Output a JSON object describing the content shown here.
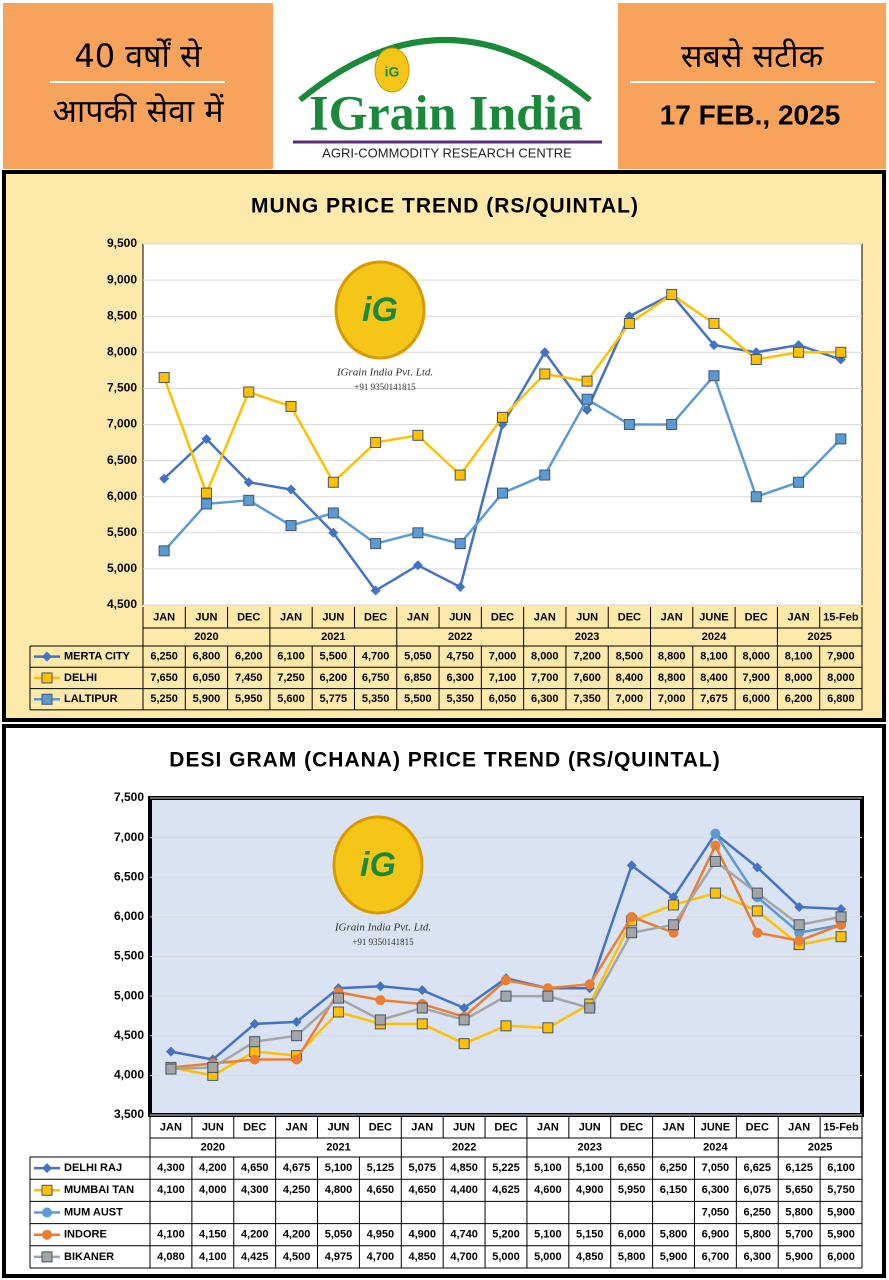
{
  "header": {
    "left_line1": "40 वर्षों से",
    "left_line2": "आपकी सेवा में",
    "logo_mark": "iG",
    "logo_title": "IGrain India",
    "logo_subtitle": "AGRI-COMMODITY RESEARCH CENTRE",
    "right_line1": "सबसे सटीक",
    "date": "17 FEB., 2025"
  },
  "chart_data": [
    {
      "type": "line",
      "title": "MUNG  PRICE TREND (RS/QUINTAL)",
      "watermark": {
        "mark": "iG",
        "name": "IGrain India Pvt. Ltd.",
        "phone": "+91 9350141815"
      },
      "categories": [
        "JAN",
        "JUN",
        "DEC",
        "JAN",
        "JUN",
        "DEC",
        "JAN",
        "JUN",
        "DEC",
        "JAN",
        "JUN",
        "DEC",
        "JAN",
        "JUNE",
        "DEC",
        "JAN",
        "15-Feb"
      ],
      "years": [
        "2020",
        "2021",
        "2022",
        "2023",
        "2024",
        "2025"
      ],
      "ylim": [
        4500,
        9500
      ],
      "yticks": [
        {
          "value": 4500,
          "label": "4,500"
        },
        {
          "value": 5000,
          "label": "5,000"
        },
        {
          "value": 5500,
          "label": "5,500"
        },
        {
          "value": 6000,
          "label": "6,000"
        },
        {
          "value": 6500,
          "label": "6,500"
        },
        {
          "value": 7000,
          "label": "7,000"
        },
        {
          "value": 7500,
          "label": "7,500"
        },
        {
          "value": 8000,
          "label": "8,000"
        },
        {
          "value": 8500,
          "label": "8,500"
        },
        {
          "value": 9000,
          "label": "9,000"
        },
        {
          "value": 9500,
          "label": "9,500"
        }
      ],
      "grid": true,
      "series": [
        {
          "name": "MERTA CITY",
          "color": "#4472c4",
          "marker": "diamond",
          "values": [
            6250,
            6800,
            6200,
            6100,
            5500,
            4700,
            5050,
            4750,
            7000,
            8000,
            7200,
            8500,
            8800,
            8100,
            8000,
            8100,
            7900
          ],
          "value_labels": [
            "6,250",
            "6,800",
            "6,200",
            "6,100",
            "5,500",
            "4,700",
            "5,050",
            "4,750",
            "7,000",
            "8,000",
            "7,200",
            "8,500",
            "8,800",
            "8,100",
            "8,000",
            "8,100",
            "7,900"
          ]
        },
        {
          "name": "DELHI",
          "color": "#ffc000",
          "marker": "square",
          "values": [
            7650,
            6050,
            7450,
            7250,
            6200,
            6750,
            6850,
            6300,
            7100,
            7700,
            7600,
            8400,
            8800,
            8400,
            7900,
            8000,
            8000
          ],
          "value_labels": [
            "7,650",
            "6,050",
            "7,450",
            "7,250",
            "6,200",
            "6,750",
            "6,850",
            "6,300",
            "7,100",
            "7,700",
            "7,600",
            "8,400",
            "8,800",
            "8,400",
            "7,900",
            "8,000",
            "8,000"
          ]
        },
        {
          "name": "LALTIPUR",
          "color": "#5b9bd5",
          "marker": "square",
          "values": [
            5250,
            5900,
            5950,
            5600,
            5775,
            5350,
            5500,
            5350,
            6050,
            6300,
            7350,
            7000,
            7000,
            7675,
            6000,
            6200,
            6800
          ],
          "value_labels": [
            "5,250",
            "5,900",
            "5,950",
            "5,600",
            "5,775",
            "5,350",
            "5,500",
            "5,350",
            "6,050",
            "6,300",
            "7,350",
            "7,000",
            "7,000",
            "7,675",
            "6,000",
            "6,200",
            "6,800"
          ]
        }
      ]
    },
    {
      "type": "line",
      "title": "DESI GRAM (CHANA)  PRICE TREND (RS/QUINTAL)",
      "watermark": {
        "mark": "iG",
        "name": "IGrain India Pvt. Ltd.",
        "phone": "+91 9350141815"
      },
      "categories": [
        "JAN",
        "JUN",
        "DEC",
        "JAN",
        "JUN",
        "DEC",
        "JAN",
        "JUN",
        "DEC",
        "JAN",
        "JUN",
        "DEC",
        "JAN",
        "JUNE",
        "DEC",
        "JAN",
        "15-Feb"
      ],
      "years": [
        "2020",
        "2021",
        "2022",
        "2023",
        "2024",
        "2025"
      ],
      "ylim": [
        3500,
        7500
      ],
      "yticks": [
        {
          "value": 3500,
          "label": "3,500"
        },
        {
          "value": 4000,
          "label": "4,000"
        },
        {
          "value": 4500,
          "label": "4,500"
        },
        {
          "value": 5000,
          "label": "5,000"
        },
        {
          "value": 5500,
          "label": "5,500"
        },
        {
          "value": 6000,
          "label": "6,000"
        },
        {
          "value": 6500,
          "label": "6,500"
        },
        {
          "value": 7000,
          "label": "7,000"
        },
        {
          "value": 7500,
          "label": "7,500"
        }
      ],
      "grid": true,
      "series": [
        {
          "name": "DELHI RAJ",
          "color": "#4472c4",
          "marker": "diamond",
          "values": [
            4300,
            4200,
            4650,
            4675,
            5100,
            5125,
            5075,
            4850,
            5225,
            5100,
            5100,
            6650,
            6250,
            7050,
            6625,
            6125,
            6100
          ],
          "value_labels": [
            "4,300",
            "4,200",
            "4,650",
            "4,675",
            "5,100",
            "5,125",
            "5,075",
            "4,850",
            "5,225",
            "5,100",
            "5,100",
            "6,650",
            "6,250",
            "7,050",
            "6,625",
            "6,125",
            "6,100"
          ]
        },
        {
          "name": "MUMBAI TAN",
          "color": "#ffc000",
          "marker": "square",
          "values": [
            4100,
            4000,
            4300,
            4250,
            4800,
            4650,
            4650,
            4400,
            4625,
            4600,
            4900,
            5950,
            6150,
            6300,
            6075,
            5650,
            5750
          ],
          "value_labels": [
            "4,100",
            "4,000",
            "4,300",
            "4,250",
            "4,800",
            "4,650",
            "4,650",
            "4,400",
            "4,625",
            "4,600",
            "4,900",
            "5,950",
            "6,150",
            "6,300",
            "6,075",
            "5,650",
            "5,750"
          ]
        },
        {
          "name": "MUM AUST",
          "color": "#5b9bd5",
          "marker": "circle",
          "values": [
            null,
            null,
            null,
            null,
            null,
            null,
            null,
            null,
            null,
            null,
            null,
            null,
            null,
            7050,
            6250,
            5800,
            5900
          ],
          "value_labels": [
            null,
            null,
            null,
            null,
            null,
            null,
            null,
            null,
            null,
            null,
            null,
            null,
            null,
            "7,050",
            "6,250",
            "5,800",
            "5,900"
          ]
        },
        {
          "name": "INDORE",
          "color": "#ed7d31",
          "marker": "circle",
          "values": [
            4100,
            4150,
            4200,
            4200,
            5050,
            4950,
            4900,
            4740,
            5200,
            5100,
            5150,
            6000,
            5800,
            6900,
            5800,
            5700,
            5900
          ],
          "value_labels": [
            "4,100",
            "4,150",
            "4,200",
            "4,200",
            "5,050",
            "4,950",
            "4,900",
            "4,740",
            "5,200",
            "5,100",
            "5,150",
            "6,000",
            "5,800",
            "6,900",
            "5,800",
            "5,700",
            "5,900"
          ]
        },
        {
          "name": "BIKANER",
          "color": "#a5a5a5",
          "marker": "square",
          "values": [
            4080,
            4100,
            4425,
            4500,
            4975,
            4700,
            4850,
            4700,
            5000,
            5000,
            4850,
            5800,
            5900,
            6700,
            6300,
            5900,
            6000
          ],
          "value_labels": [
            "4,080",
            "4,100",
            "4,425",
            "4,500",
            "4,975",
            "4,700",
            "4,850",
            "4,700",
            "5,000",
            "5,000",
            "4,850",
            "5,800",
            "5,900",
            "6,700",
            "6,300",
            "5,900",
            "6,000"
          ]
        }
      ]
    }
  ]
}
